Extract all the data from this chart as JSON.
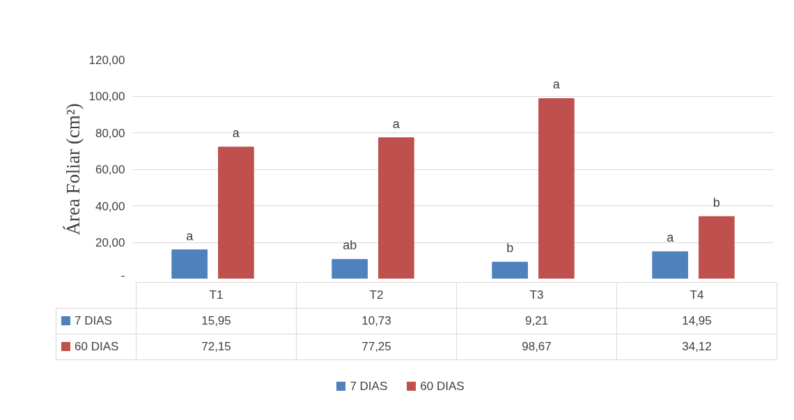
{
  "chart_data": {
    "type": "bar",
    "ylabel": "Área Foliar (cm²)",
    "categories": [
      "T1",
      "T2",
      "T3",
      "T4"
    ],
    "series": [
      {
        "name": "7 DIAS",
        "color": "#4f81bd",
        "values": [
          15.95,
          10.73,
          9.21,
          14.95
        ],
        "value_labels": [
          "15,95",
          "10,73",
          "9,21",
          "14,95"
        ]
      },
      {
        "name": "60 DIAS",
        "color": "#c0504d",
        "values": [
          72.15,
          77.25,
          98.67,
          34.12
        ],
        "value_labels": [
          "72,15",
          "77,25",
          "98,67",
          "34,12"
        ]
      }
    ],
    "ylim": [
      0,
      120
    ],
    "yticks": [
      {
        "value": 0,
        "label": "-"
      },
      {
        "value": 20,
        "label": "20,00"
      },
      {
        "value": 40,
        "label": "40,00"
      },
      {
        "value": 60,
        "label": "60,00"
      },
      {
        "value": 80,
        "label": "80,00"
      },
      {
        "value": 100,
        "label": "100,00"
      },
      {
        "value": 120,
        "label": "120,00"
      }
    ],
    "grid": "y",
    "legend": "bottom",
    "annotations": [
      "a",
      "a",
      "ab",
      "a",
      "b",
      "a",
      "a",
      "b"
    ]
  }
}
